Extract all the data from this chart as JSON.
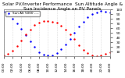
{
  "title": "Solar PV/Inverter Performance  Sun Altitude Angle & Sun Incidence Angle on PV Panels",
  "bg_color": "#ffffff",
  "plot_bg": "#ffffff",
  "grid_color": "#aaaaaa",
  "text_color": "#000000",
  "spine_color": "#888888",
  "blue_label": "Sun Alt 5000 ----",
  "x_values": [
    0,
    1,
    2,
    3,
    4,
    5,
    6,
    7,
    8,
    9,
    10,
    11,
    12,
    13,
    14,
    15,
    16,
    17,
    18,
    19,
    20,
    21,
    22,
    23,
    24
  ],
  "blue_y": [
    95,
    88,
    80,
    70,
    58,
    45,
    32,
    20,
    9,
    3,
    1,
    2,
    7,
    15,
    25,
    37,
    50,
    63,
    74,
    83,
    90,
    94,
    96,
    95,
    93
  ],
  "red_y": [
    2,
    5,
    12,
    22,
    34,
    46,
    57,
    66,
    72,
    75,
    75,
    74,
    71,
    65,
    57,
    47,
    36,
    24,
    13,
    6,
    2,
    0,
    2,
    5,
    8
  ],
  "ylim": [
    0,
    100
  ],
  "xlim": [
    0,
    24
  ],
  "xtick_positions": [
    0,
    2,
    4,
    6,
    8,
    10,
    12,
    14,
    16,
    18,
    20,
    22,
    24
  ],
  "xtick_labels": [
    "00:00",
    "02:00",
    "04:00",
    "06:00",
    "08:00",
    "10:00",
    "12:00",
    "14:00",
    "16:00",
    "18:00",
    "20:00",
    "22:00",
    "24:00"
  ],
  "ytick_positions": [
    10,
    20,
    30,
    40,
    50,
    60,
    70,
    80,
    90,
    100
  ],
  "ytick_labels": [
    "10",
    "20",
    "30",
    "40",
    "50",
    "60",
    "70",
    "80",
    "90",
    "100"
  ],
  "title_fontsize": 4.2,
  "tick_fontsize": 3.2,
  "legend_fontsize": 3.0,
  "line_width": 0.0,
  "marker_size": 1.5,
  "figsize": [
    1.6,
    1.0
  ],
  "dpi": 100
}
